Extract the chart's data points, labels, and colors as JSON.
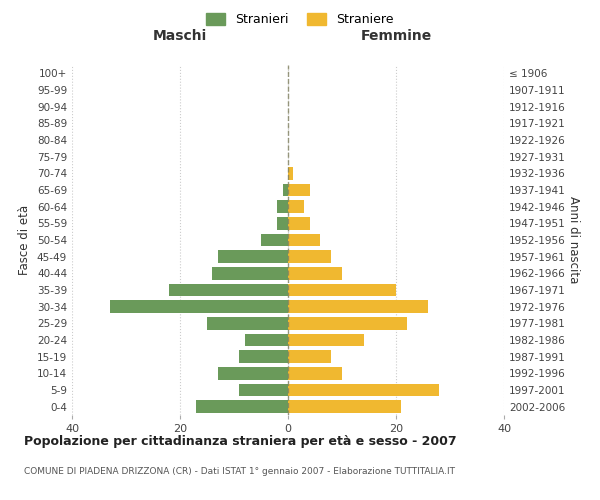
{
  "age_groups": [
    "0-4",
    "5-9",
    "10-14",
    "15-19",
    "20-24",
    "25-29",
    "30-34",
    "35-39",
    "40-44",
    "45-49",
    "50-54",
    "55-59",
    "60-64",
    "65-69",
    "70-74",
    "75-79",
    "80-84",
    "85-89",
    "90-94",
    "95-99",
    "100+"
  ],
  "birth_years": [
    "2002-2006",
    "1997-2001",
    "1992-1996",
    "1987-1991",
    "1982-1986",
    "1977-1981",
    "1972-1976",
    "1967-1971",
    "1962-1966",
    "1957-1961",
    "1952-1956",
    "1947-1951",
    "1942-1946",
    "1937-1941",
    "1932-1936",
    "1927-1931",
    "1922-1926",
    "1917-1921",
    "1912-1916",
    "1907-1911",
    "≤ 1906"
  ],
  "maschi": [
    17,
    9,
    13,
    9,
    8,
    15,
    33,
    22,
    14,
    13,
    5,
    2,
    2,
    1,
    0,
    0,
    0,
    0,
    0,
    0,
    0
  ],
  "femmine": [
    21,
    28,
    10,
    8,
    14,
    22,
    26,
    20,
    10,
    8,
    6,
    4,
    3,
    4,
    1,
    0,
    0,
    0,
    0,
    0,
    0
  ],
  "maschi_color": "#6a9a5a",
  "femmine_color": "#f0b830",
  "background_color": "#ffffff",
  "grid_color": "#cccccc",
  "title": "Popolazione per cittadinanza straniera per età e sesso - 2007",
  "subtitle": "COMUNE DI PIADENA DRIZZONA (CR) - Dati ISTAT 1° gennaio 2007 - Elaborazione TUTTITALIA.IT",
  "xlabel_left": "Maschi",
  "xlabel_right": "Femmine",
  "ylabel_left": "Fasce di età",
  "ylabel_right": "Anni di nascita",
  "legend_stranieri": "Stranieri",
  "legend_straniere": "Straniere",
  "xlim": 40,
  "bar_height": 0.75
}
